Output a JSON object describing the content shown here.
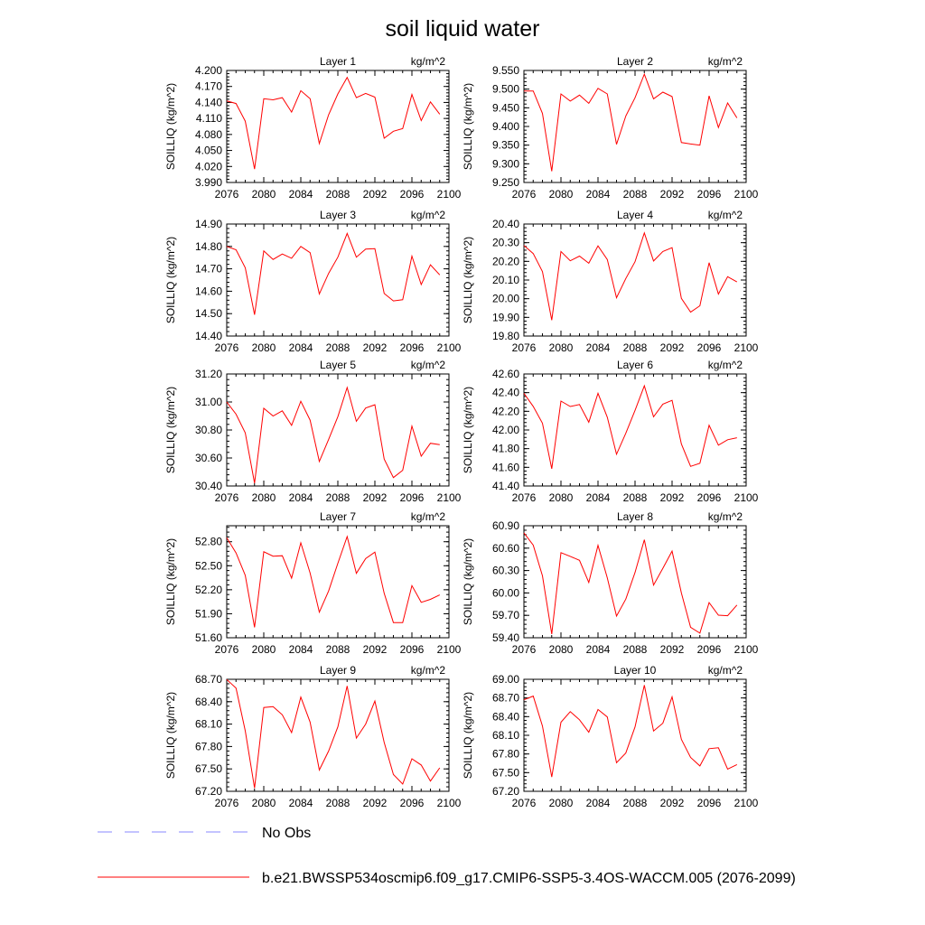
{
  "title": "soil liquid water",
  "chart_data": [
    {
      "type": "line",
      "title": "Layer 1",
      "units": "kg/m^2",
      "ylabel": "SOILLIQ  (kg/m^2)",
      "xlim": [
        2076,
        2100
      ],
      "xticks": [
        2076,
        2080,
        2084,
        2088,
        2092,
        2096,
        2100
      ],
      "ylim": [
        3.99,
        4.2
      ],
      "yticks": [
        "3.990",
        "4.020",
        "4.050",
        "4.080",
        "4.110",
        "4.140",
        "4.170",
        "4.200"
      ],
      "series": [
        {
          "color": "#ff0000",
          "x": [
            2076,
            2077,
            2078,
            2079,
            2080,
            2081,
            2082,
            2083,
            2084,
            2085,
            2086,
            2087,
            2088,
            2089,
            2090,
            2091,
            2092,
            2093,
            2094,
            2095,
            2096,
            2097,
            2098,
            2099
          ],
          "values": [
            4.143,
            4.138,
            4.105,
            4.015,
            4.147,
            4.145,
            4.149,
            4.122,
            4.162,
            4.147,
            4.063,
            4.117,
            4.156,
            4.187,
            4.149,
            4.157,
            4.15,
            4.073,
            4.086,
            4.091,
            4.155,
            4.106,
            4.141,
            4.118
          ]
        }
      ]
    },
    {
      "type": "line",
      "title": "Layer 2",
      "units": "kg/m^2",
      "ylabel": "SOILLIQ  (kg/m^2)",
      "xlim": [
        2076,
        2100
      ],
      "xticks": [
        2076,
        2080,
        2084,
        2088,
        2092,
        2096,
        2100
      ],
      "ylim": [
        9.25,
        9.55
      ],
      "yticks": [
        "9.250",
        "9.300",
        "9.350",
        "9.400",
        "9.450",
        "9.500",
        "9.550"
      ],
      "series": [
        {
          "color": "#ff0000",
          "x": [
            2076,
            2077,
            2078,
            2079,
            2080,
            2081,
            2082,
            2083,
            2084,
            2085,
            2086,
            2087,
            2088,
            2089,
            2090,
            2091,
            2092,
            2093,
            2094,
            2095,
            2096,
            2097,
            2098,
            2099
          ],
          "values": [
            9.495,
            9.495,
            9.435,
            9.28,
            9.487,
            9.468,
            9.484,
            9.462,
            9.502,
            9.487,
            9.352,
            9.428,
            9.477,
            9.54,
            9.474,
            9.492,
            9.48,
            9.357,
            9.353,
            9.35,
            9.482,
            9.397,
            9.463,
            9.423
          ]
        }
      ]
    },
    {
      "type": "line",
      "title": "Layer 3",
      "units": "kg/m^2",
      "ylabel": "SOILLIQ  (kg/m^2)",
      "xlim": [
        2076,
        2100
      ],
      "xticks": [
        2076,
        2080,
        2084,
        2088,
        2092,
        2096,
        2100
      ],
      "ylim": [
        14.4,
        14.9
      ],
      "yticks": [
        "14.40",
        "14.50",
        "14.60",
        "14.70",
        "14.80",
        "14.90"
      ],
      "series": [
        {
          "color": "#ff0000",
          "x": [
            2076,
            2077,
            2078,
            2079,
            2080,
            2081,
            2082,
            2083,
            2084,
            2085,
            2086,
            2087,
            2088,
            2089,
            2090,
            2091,
            2092,
            2093,
            2094,
            2095,
            2096,
            2097,
            2098,
            2099
          ],
          "values": [
            14.8,
            14.785,
            14.705,
            14.495,
            14.78,
            14.742,
            14.766,
            14.747,
            14.8,
            14.772,
            14.588,
            14.68,
            14.752,
            14.858,
            14.752,
            14.788,
            14.79,
            14.59,
            14.557,
            14.562,
            14.757,
            14.63,
            14.718,
            14.673
          ]
        }
      ]
    },
    {
      "type": "line",
      "title": "Layer 4",
      "units": "kg/m^2",
      "ylabel": "SOILLIQ  (kg/m^2)",
      "xlim": [
        2076,
        2100
      ],
      "xticks": [
        2076,
        2080,
        2084,
        2088,
        2092,
        2096,
        2100
      ],
      "ylim": [
        19.8,
        20.4
      ],
      "yticks": [
        "19.80",
        "19.90",
        "20.00",
        "20.10",
        "20.20",
        "20.30",
        "20.40"
      ],
      "series": [
        {
          "color": "#ff0000",
          "x": [
            2076,
            2077,
            2078,
            2079,
            2080,
            2081,
            2082,
            2083,
            2084,
            2085,
            2086,
            2087,
            2088,
            2089,
            2090,
            2091,
            2092,
            2093,
            2094,
            2095,
            2096,
            2097,
            2098,
            2099
          ],
          "values": [
            20.285,
            20.242,
            20.145,
            19.885,
            20.253,
            20.203,
            20.228,
            20.19,
            20.283,
            20.21,
            20.005,
            20.108,
            20.198,
            20.352,
            20.202,
            20.253,
            20.273,
            20.002,
            19.928,
            19.962,
            20.193,
            20.025,
            20.118,
            20.09
          ]
        }
      ]
    },
    {
      "type": "line",
      "title": "Layer 5",
      "units": "kg/m^2",
      "ylabel": "SOILLIQ  (kg/m^2)",
      "xlim": [
        2076,
        2100
      ],
      "xticks": [
        2076,
        2080,
        2084,
        2088,
        2092,
        2096,
        2100
      ],
      "ylim": [
        30.4,
        31.2
      ],
      "yticks": [
        "30.40",
        "30.60",
        "30.80",
        "31.00",
        "31.20"
      ],
      "series": [
        {
          "color": "#ff0000",
          "x": [
            2076,
            2077,
            2078,
            2079,
            2080,
            2081,
            2082,
            2083,
            2084,
            2085,
            2086,
            2087,
            2088,
            2089,
            2090,
            2091,
            2092,
            2093,
            2094,
            2095,
            2096,
            2097,
            2098,
            2099
          ],
          "values": [
            31.0,
            30.913,
            30.78,
            30.42,
            30.955,
            30.9,
            30.937,
            30.833,
            31.005,
            30.87,
            30.575,
            30.733,
            30.895,
            31.103,
            30.862,
            30.957,
            30.98,
            30.592,
            30.46,
            30.512,
            30.828,
            30.613,
            30.705,
            30.695
          ]
        }
      ]
    },
    {
      "type": "line",
      "title": "Layer 6",
      "units": "kg/m^2",
      "ylabel": "SOILLIQ  (kg/m^2)",
      "xlim": [
        2076,
        2100
      ],
      "xticks": [
        2076,
        2080,
        2084,
        2088,
        2092,
        2096,
        2100
      ],
      "ylim": [
        41.4,
        42.6
      ],
      "yticks": [
        "41.40",
        "41.60",
        "41.80",
        "42.00",
        "42.20",
        "42.40",
        "42.60"
      ],
      "series": [
        {
          "color": "#ff0000",
          "x": [
            2076,
            2077,
            2078,
            2079,
            2080,
            2081,
            2082,
            2083,
            2084,
            2085,
            2086,
            2087,
            2088,
            2089,
            2090,
            2091,
            2092,
            2093,
            2094,
            2095,
            2096,
            2097,
            2098,
            2099
          ],
          "values": [
            42.393,
            42.253,
            42.073,
            41.585,
            42.31,
            42.252,
            42.273,
            42.083,
            42.393,
            42.136,
            41.74,
            41.965,
            42.21,
            42.473,
            42.141,
            42.277,
            42.317,
            41.85,
            41.61,
            41.643,
            42.05,
            41.837,
            41.895,
            41.917
          ]
        }
      ]
    },
    {
      "type": "line",
      "title": "Layer 7",
      "units": "kg/m^2",
      "ylabel": "SOILLIQ  (kg/m^2)",
      "xlim": [
        2076,
        2100
      ],
      "xticks": [
        2076,
        2080,
        2084,
        2088,
        2092,
        2096,
        2100
      ],
      "ylim": [
        51.6,
        53.0
      ],
      "yticks": [
        "51.60",
        "51.90",
        "52.20",
        "52.50",
        "52.80"
      ],
      "series": [
        {
          "color": "#ff0000",
          "x": [
            2076,
            2077,
            2078,
            2079,
            2080,
            2081,
            2082,
            2083,
            2084,
            2085,
            2086,
            2087,
            2088,
            2089,
            2090,
            2091,
            2092,
            2093,
            2094,
            2095,
            2096,
            2097,
            2098,
            2099
          ],
          "values": [
            52.85,
            52.66,
            52.38,
            51.73,
            52.675,
            52.62,
            52.625,
            52.345,
            52.787,
            52.408,
            51.92,
            52.185,
            52.53,
            52.865,
            52.405,
            52.59,
            52.67,
            52.155,
            51.79,
            51.79,
            52.252,
            52.043,
            52.08,
            52.135
          ]
        }
      ]
    },
    {
      "type": "line",
      "title": "Layer 8",
      "units": "kg/m^2",
      "ylabel": "SOILLIQ  (kg/m^2)",
      "xlim": [
        2076,
        2100
      ],
      "xticks": [
        2076,
        2080,
        2084,
        2088,
        2092,
        2096,
        2100
      ],
      "ylim": [
        59.4,
        60.9
      ],
      "yticks": [
        "59.40",
        "59.70",
        "60.00",
        "60.30",
        "60.60",
        "60.90"
      ],
      "series": [
        {
          "color": "#ff0000",
          "x": [
            2076,
            2077,
            2078,
            2079,
            2080,
            2081,
            2082,
            2083,
            2084,
            2085,
            2086,
            2087,
            2088,
            2089,
            2090,
            2091,
            2092,
            2093,
            2094,
            2095,
            2096,
            2097,
            2098,
            2099
          ],
          "values": [
            60.805,
            60.64,
            60.23,
            59.45,
            60.54,
            60.49,
            60.437,
            60.14,
            60.638,
            60.202,
            59.69,
            59.918,
            60.275,
            60.712,
            60.105,
            60.33,
            60.56,
            60.0,
            59.54,
            59.462,
            59.87,
            59.702,
            59.695,
            59.838
          ]
        }
      ]
    },
    {
      "type": "line",
      "title": "Layer 9",
      "units": "kg/m^2",
      "ylabel": "SOILLIQ  (kg/m^2)",
      "xlim": [
        2076,
        2100
      ],
      "xticks": [
        2076,
        2080,
        2084,
        2088,
        2092,
        2096,
        2100
      ],
      "ylim": [
        67.2,
        68.7
      ],
      "yticks": [
        "67.20",
        "67.50",
        "67.80",
        "68.10",
        "68.40",
        "68.70"
      ],
      "series": [
        {
          "color": "#ff0000",
          "x": [
            2076,
            2077,
            2078,
            2079,
            2080,
            2081,
            2082,
            2083,
            2084,
            2085,
            2086,
            2087,
            2088,
            2089,
            2090,
            2091,
            2092,
            2093,
            2094,
            2095,
            2096,
            2097,
            2098,
            2099
          ],
          "values": [
            68.697,
            68.582,
            68.01,
            67.243,
            68.323,
            68.333,
            68.225,
            67.986,
            68.462,
            68.127,
            67.485,
            67.74,
            68.063,
            68.61,
            67.913,
            68.1,
            68.408,
            67.854,
            67.425,
            67.297,
            67.635,
            67.552,
            67.337,
            67.515
          ]
        }
      ]
    },
    {
      "type": "line",
      "title": "Layer 10",
      "units": "kg/m^2",
      "ylabel": "SOILLIQ  (kg/m^2)",
      "xlim": [
        2076,
        2100
      ],
      "xticks": [
        2076,
        2080,
        2084,
        2088,
        2092,
        2096,
        2100
      ],
      "ylim": [
        67.2,
        69.0
      ],
      "yticks": [
        "67.20",
        "67.50",
        "67.80",
        "68.10",
        "68.40",
        "68.70",
        "69.00"
      ],
      "series": [
        {
          "color": "#ff0000",
          "x": [
            2076,
            2077,
            2078,
            2079,
            2080,
            2081,
            2082,
            2083,
            2084,
            2085,
            2086,
            2087,
            2088,
            2089,
            2090,
            2091,
            2092,
            2093,
            2094,
            2095,
            2096,
            2097,
            2098,
            2099
          ],
          "values": [
            68.67,
            68.73,
            68.25,
            67.43,
            68.31,
            68.48,
            68.35,
            68.15,
            68.515,
            68.395,
            67.66,
            67.815,
            68.235,
            68.905,
            68.17,
            68.295,
            68.718,
            68.035,
            67.745,
            67.608,
            67.885,
            67.9,
            67.555,
            67.63
          ]
        }
      ]
    }
  ],
  "legend": [
    {
      "label": "No Obs",
      "color": "#8a8aff",
      "style": "dashed"
    },
    {
      "label": "b.e21.BWSSP534oscmip6.f09_g17.CMIP6-SSP5-3.4OS-WACCM.005 (2076-2099)",
      "color": "#ff0000",
      "style": "solid"
    }
  ]
}
